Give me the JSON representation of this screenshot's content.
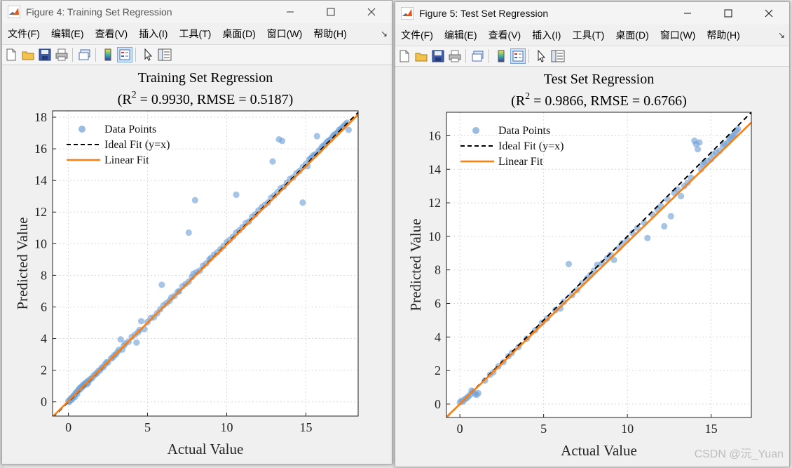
{
  "menu": [
    "文件(F)",
    "编辑(E)",
    "查看(V)",
    "插入(I)",
    "工具(T)",
    "桌面(D)",
    "窗口(W)",
    "帮助(H)"
  ],
  "menu_more": "↘",
  "windows": [
    {
      "title": "Figure 4: Training Set Regression",
      "plot_title": "Training Set Regression",
      "plot_subtitle_prefix": "(R",
      "plot_subtitle_sup": "2",
      "plot_subtitle_suffix": " = 0.9930, RMSE = 0.5187)"
    },
    {
      "title": "Figure 5: Test Set Regression",
      "plot_title": "Test Set Regression",
      "plot_subtitle_prefix": "(R",
      "plot_subtitle_sup": "2",
      "plot_subtitle_suffix": " = 0.9866, RMSE = 0.6766)"
    }
  ],
  "watermark": "CSDN @沅_Yuan",
  "colors": {
    "points": "#6f9fd6",
    "ideal": "#000000",
    "fit": "#ff7f0e"
  },
  "chart_data": [
    {
      "type": "scatter",
      "title": "Training Set Regression",
      "subtitle": "(R^2 = 0.9930, RMSE = 0.5187)",
      "xlabel": "Actual Value",
      "ylabel": "Predicted Value",
      "xlim": [
        -1,
        18.3
      ],
      "ylim": [
        -0.9,
        18.4
      ],
      "xticks": [
        0,
        5,
        10,
        15
      ],
      "yticks": [
        0,
        2,
        4,
        6,
        8,
        10,
        12,
        14,
        16,
        18
      ],
      "legend": [
        "Data Points",
        "Ideal Fit (y=x)",
        "Linear Fit"
      ],
      "legend_position": "top-left",
      "grid": true,
      "ideal_fit": {
        "slope": 1,
        "intercept": 0
      },
      "linear_fit": {
        "slope": 0.99,
        "intercept": 0.05
      },
      "series": [
        {
          "name": "Data Points",
          "points": [
            [
              0.0,
              0.05
            ],
            [
              0.05,
              0.0
            ],
            [
              0.1,
              0.15
            ],
            [
              0.15,
              0.1
            ],
            [
              0.2,
              0.25
            ],
            [
              0.25,
              0.2
            ],
            [
              0.3,
              0.35
            ],
            [
              0.35,
              0.4
            ],
            [
              0.4,
              0.3
            ],
            [
              0.45,
              0.55
            ],
            [
              0.5,
              0.6
            ],
            [
              0.55,
              0.5
            ],
            [
              0.6,
              0.7
            ],
            [
              0.65,
              0.75
            ],
            [
              0.7,
              0.85
            ],
            [
              0.75,
              0.8
            ],
            [
              0.8,
              0.95
            ],
            [
              0.85,
              0.9
            ],
            [
              0.9,
              1.0
            ],
            [
              0.95,
              1.1
            ],
            [
              1.0,
              1.05
            ],
            [
              1.05,
              1.15
            ],
            [
              1.1,
              1.2
            ],
            [
              1.15,
              1.1
            ],
            [
              1.2,
              1.3
            ],
            [
              1.25,
              1.2
            ],
            [
              1.3,
              1.35
            ],
            [
              1.4,
              1.45
            ],
            [
              1.5,
              1.5
            ],
            [
              1.6,
              1.65
            ],
            [
              1.7,
              1.75
            ],
            [
              1.8,
              1.8
            ],
            [
              1.9,
              1.95
            ],
            [
              2.0,
              2.0
            ],
            [
              2.1,
              2.15
            ],
            [
              2.2,
              2.2
            ],
            [
              2.3,
              2.35
            ],
            [
              2.4,
              2.5
            ],
            [
              2.5,
              2.5
            ],
            [
              2.7,
              2.75
            ],
            [
              2.8,
              2.8
            ],
            [
              2.9,
              2.95
            ],
            [
              3.0,
              3.0
            ],
            [
              3.1,
              3.15
            ],
            [
              3.2,
              3.3
            ],
            [
              3.3,
              3.95
            ],
            [
              3.4,
              3.3
            ],
            [
              3.5,
              3.55
            ],
            [
              3.6,
              3.7
            ],
            [
              3.8,
              3.8
            ],
            [
              4.0,
              4.1
            ],
            [
              4.2,
              4.25
            ],
            [
              4.3,
              3.75
            ],
            [
              4.4,
              4.4
            ],
            [
              4.5,
              4.55
            ],
            [
              4.6,
              5.1
            ],
            [
              4.8,
              4.6
            ],
            [
              5.0,
              5.05
            ],
            [
              5.2,
              5.3
            ],
            [
              5.4,
              5.35
            ],
            [
              5.6,
              5.6
            ],
            [
              5.8,
              5.85
            ],
            [
              5.9,
              7.4
            ],
            [
              6.0,
              6.1
            ],
            [
              6.2,
              6.25
            ],
            [
              6.4,
              6.4
            ],
            [
              6.5,
              6.6
            ],
            [
              6.7,
              6.7
            ],
            [
              6.9,
              6.95
            ],
            [
              7.0,
              7.0
            ],
            [
              7.2,
              7.3
            ],
            [
              7.4,
              7.45
            ],
            [
              7.6,
              10.7
            ],
            [
              7.6,
              7.6
            ],
            [
              7.8,
              7.9
            ],
            [
              7.9,
              8.1
            ],
            [
              8.0,
              12.75
            ],
            [
              8.1,
              8.2
            ],
            [
              8.3,
              8.3
            ],
            [
              8.5,
              8.6
            ],
            [
              8.7,
              8.75
            ],
            [
              8.9,
              9.0
            ],
            [
              9.0,
              9.1
            ],
            [
              9.2,
              9.3
            ],
            [
              9.4,
              9.45
            ],
            [
              9.6,
              9.65
            ],
            [
              9.8,
              9.85
            ],
            [
              10.0,
              10.1
            ],
            [
              10.2,
              10.25
            ],
            [
              10.4,
              10.45
            ],
            [
              10.6,
              13.1
            ],
            [
              10.6,
              10.7
            ],
            [
              10.8,
              10.85
            ],
            [
              11.0,
              11.05
            ],
            [
              11.2,
              11.3
            ],
            [
              11.4,
              11.4
            ],
            [
              11.6,
              11.7
            ],
            [
              11.8,
              11.85
            ],
            [
              12.0,
              12.1
            ],
            [
              12.2,
              12.3
            ],
            [
              12.4,
              12.45
            ],
            [
              12.6,
              12.6
            ],
            [
              12.8,
              12.9
            ],
            [
              12.9,
              15.2
            ],
            [
              13.0,
              13.05
            ],
            [
              13.2,
              13.25
            ],
            [
              13.3,
              16.6
            ],
            [
              13.4,
              13.5
            ],
            [
              13.5,
              16.5
            ],
            [
              13.6,
              13.6
            ],
            [
              13.8,
              13.85
            ],
            [
              14.0,
              14.1
            ],
            [
              14.2,
              14.2
            ],
            [
              14.4,
              14.45
            ],
            [
              14.6,
              14.6
            ],
            [
              14.8,
              12.6
            ],
            [
              14.8,
              14.85
            ],
            [
              15.0,
              15.05
            ],
            [
              15.1,
              14.9
            ],
            [
              15.2,
              15.3
            ],
            [
              15.3,
              15.4
            ],
            [
              15.4,
              15.5
            ],
            [
              15.5,
              15.6
            ],
            [
              15.6,
              15.65
            ],
            [
              15.7,
              16.8
            ],
            [
              15.8,
              15.85
            ],
            [
              15.9,
              15.95
            ],
            [
              16.0,
              16.1
            ],
            [
              16.1,
              16.2
            ],
            [
              16.2,
              16.25
            ],
            [
              16.3,
              16.4
            ],
            [
              16.4,
              16.5
            ],
            [
              16.5,
              16.55
            ],
            [
              16.6,
              16.65
            ],
            [
              16.7,
              16.8
            ],
            [
              16.8,
              16.9
            ],
            [
              16.9,
              16.95
            ],
            [
              17.0,
              17.05
            ],
            [
              17.1,
              17.2
            ],
            [
              17.2,
              17.25
            ],
            [
              17.3,
              17.35
            ],
            [
              17.4,
              17.45
            ],
            [
              17.5,
              17.55
            ],
            [
              17.6,
              17.65
            ],
            [
              17.7,
              17.2
            ]
          ]
        }
      ]
    },
    {
      "type": "scatter",
      "title": "Test Set Regression",
      "subtitle": "(R^2 = 0.9866, RMSE = 0.6766)",
      "xlabel": "Actual Value",
      "ylabel": "Predicted Value",
      "xlim": [
        -0.8,
        17.4
      ],
      "ylim": [
        -0.8,
        17.4
      ],
      "xticks": [
        0,
        5,
        10,
        15
      ],
      "yticks": [
        0,
        2,
        4,
        6,
        8,
        10,
        12,
        14,
        16
      ],
      "legend": [
        "Data Points",
        "Ideal Fit (y=x)",
        "Linear Fit"
      ],
      "legend_position": "top-left",
      "grid": true,
      "ideal_fit": {
        "slope": 1,
        "intercept": 0
      },
      "linear_fit": {
        "slope": 0.965,
        "intercept": 0.0
      },
      "series": [
        {
          "name": "Data Points",
          "points": [
            [
              0.0,
              0.1
            ],
            [
              0.1,
              0.2
            ],
            [
              0.2,
              0.15
            ],
            [
              0.3,
              0.3
            ],
            [
              0.4,
              0.35
            ],
            [
              0.5,
              0.45
            ],
            [
              0.6,
              0.55
            ],
            [
              0.7,
              0.8
            ],
            [
              0.8,
              0.75
            ],
            [
              0.9,
              0.6
            ],
            [
              1.0,
              0.55
            ],
            [
              1.1,
              0.65
            ],
            [
              1.5,
              1.4
            ],
            [
              1.8,
              1.75
            ],
            [
              2.0,
              1.9
            ],
            [
              2.3,
              2.25
            ],
            [
              2.6,
              2.5
            ],
            [
              2.9,
              2.85
            ],
            [
              3.1,
              3.05
            ],
            [
              3.5,
              3.4
            ],
            [
              4.0,
              3.9
            ],
            [
              4.5,
              4.4
            ],
            [
              4.9,
              4.85
            ],
            [
              5.2,
              5.1
            ],
            [
              5.7,
              5.6
            ],
            [
              6.0,
              5.7
            ],
            [
              6.2,
              6.1
            ],
            [
              6.5,
              8.35
            ],
            [
              6.7,
              6.5
            ],
            [
              7.0,
              6.8
            ],
            [
              7.3,
              7.2
            ],
            [
              7.6,
              7.5
            ],
            [
              7.8,
              7.7
            ],
            [
              8.0,
              7.95
            ],
            [
              8.2,
              8.3
            ],
            [
              8.5,
              8.4
            ],
            [
              8.8,
              8.7
            ],
            [
              9.0,
              8.9
            ],
            [
              9.2,
              8.6
            ],
            [
              9.5,
              9.3
            ],
            [
              9.7,
              9.6
            ],
            [
              10.0,
              9.8
            ],
            [
              10.3,
              10.2
            ],
            [
              10.6,
              10.5
            ],
            [
              11.0,
              10.8
            ],
            [
              11.2,
              9.9
            ],
            [
              11.5,
              11.3
            ],
            [
              11.8,
              11.6
            ],
            [
              12.0,
              11.8
            ],
            [
              12.2,
              10.6
            ],
            [
              12.4,
              12.2
            ],
            [
              12.6,
              11.2
            ],
            [
              12.8,
              12.6
            ],
            [
              13.0,
              12.8
            ],
            [
              13.2,
              12.4
            ],
            [
              13.4,
              13.0
            ],
            [
              13.6,
              13.2
            ],
            [
              13.8,
              13.5
            ],
            [
              14.0,
              15.7
            ],
            [
              14.1,
              15.5
            ],
            [
              14.2,
              15.2
            ],
            [
              14.3,
              15.6
            ],
            [
              14.4,
              14.0
            ],
            [
              14.5,
              14.3
            ],
            [
              14.6,
              14.4
            ],
            [
              14.8,
              14.5
            ],
            [
              15.0,
              14.6
            ],
            [
              15.1,
              14.9
            ],
            [
              15.3,
              15.0
            ],
            [
              15.5,
              15.1
            ],
            [
              15.7,
              15.4
            ],
            [
              15.8,
              15.5
            ],
            [
              16.0,
              15.6
            ],
            [
              16.1,
              15.8
            ],
            [
              16.2,
              15.9
            ],
            [
              16.3,
              16.0
            ],
            [
              16.4,
              16.1
            ],
            [
              16.5,
              16.3
            ],
            [
              16.6,
              16.4
            ]
          ]
        }
      ]
    }
  ]
}
